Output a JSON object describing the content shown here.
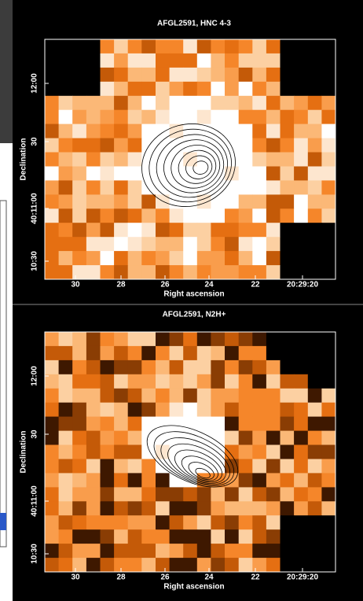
{
  "panels": [
    {
      "title": "AFGL2591, HNC 4-3",
      "x_label": "Right ascension",
      "y_label": "Declination",
      "x_tick_labels": [
        "30",
        "28",
        "26",
        "24",
        "22",
        "20:29:20"
      ],
      "y_tick_labels": [
        "12:00",
        "30",
        "40:11:00",
        "10:30"
      ]
    },
    {
      "title": "AFGL2591, N2H+",
      "x_label": "Right ascension",
      "y_label": "Declination",
      "x_tick_labels": [
        "30",
        "28",
        "26",
        "24",
        "22",
        "20:29:20"
      ],
      "y_tick_labels": [
        "12:00",
        "30",
        "40:11:00",
        "10:30"
      ]
    }
  ]
}
